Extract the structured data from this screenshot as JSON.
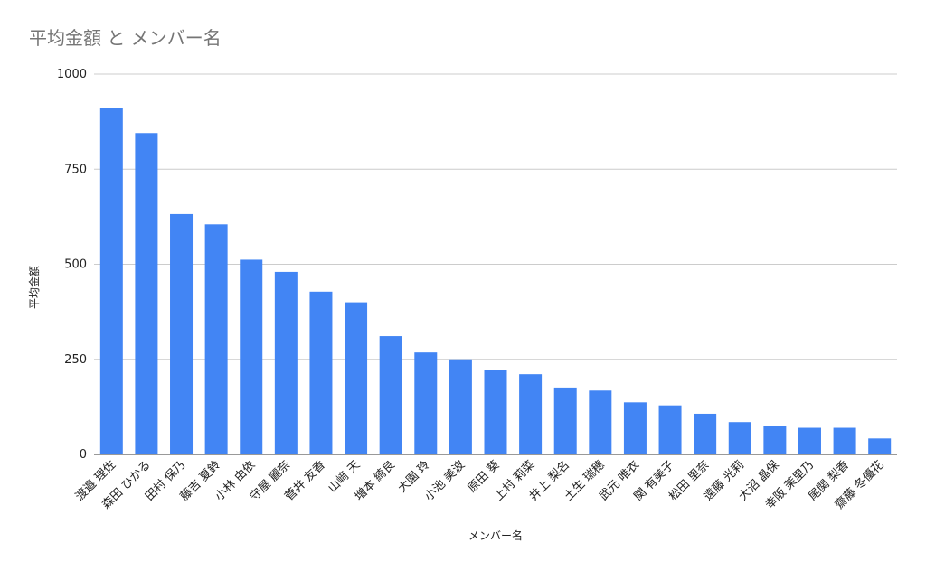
{
  "chart_data": {
    "type": "bar",
    "title": "平均金額 と メンバー名",
    "xlabel": "メンバー名",
    "ylabel": "平均金額",
    "ylim": [
      0,
      1000
    ],
    "yticks": [
      0,
      250,
      500,
      750,
      1000
    ],
    "grid": true,
    "legend": "none",
    "bar_color": "#4285F4",
    "categories": [
      "渡邉 理佐",
      "森田 ひかる",
      "田村 保乃",
      "藤吉 夏鈴",
      "小林 由依",
      "守屋 麗奈",
      "菅井 友香",
      "山﨑 天",
      "増本 綺良",
      "大園 玲",
      "小池 美波",
      "原田 葵",
      "上村 莉菜",
      "井上 梨名",
      "土生 瑞穂",
      "武元 唯衣",
      "関 有美子",
      "松田 里奈",
      "遠藤 光莉",
      "大沼 晶保",
      "幸阪 茉里乃",
      "尾関 梨香",
      "齋藤 冬優花"
    ],
    "series": [
      {
        "values": [
          912,
          845,
          632,
          605,
          512,
          480,
          428,
          400,
          311,
          268,
          250,
          222,
          211,
          176,
          168,
          137,
          129,
          107,
          85,
          75,
          70,
          70,
          42
        ]
      }
    ]
  }
}
